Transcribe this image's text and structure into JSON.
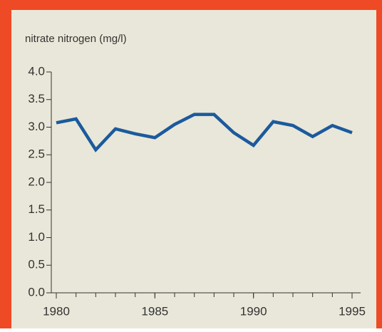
{
  "chart_data": {
    "type": "line",
    "title": "nitrate nitrogen (mg/l)",
    "x": [
      1980,
      1981,
      1982,
      1983,
      1984,
      1985,
      1986,
      1987,
      1988,
      1989,
      1990,
      1991,
      1992,
      1993,
      1994,
      1995
    ],
    "series": [
      {
        "color": "#1b5a9d",
        "values": [
          3.08,
          3.15,
          2.59,
          2.97,
          2.88,
          2.81,
          3.05,
          3.23,
          3.23,
          2.9,
          2.67,
          3.1,
          3.03,
          2.83,
          3.03,
          2.9
        ]
      }
    ],
    "xlim": [
      1980,
      1995
    ],
    "xticks": [
      1980,
      1985,
      1990,
      1995
    ],
    "ylim": [
      0,
      4
    ],
    "yticks": [
      {
        "value": 0,
        "label": "0.0"
      },
      0.5,
      {
        "value": 1,
        "label": "1.0"
      },
      1.5,
      {
        "value": 2,
        "label": "2.0"
      },
      2.5,
      {
        "value": 3,
        "label": "3.0"
      },
      3.5,
      {
        "value": 4,
        "label": "4.0"
      }
    ],
    "grid": false
  }
}
